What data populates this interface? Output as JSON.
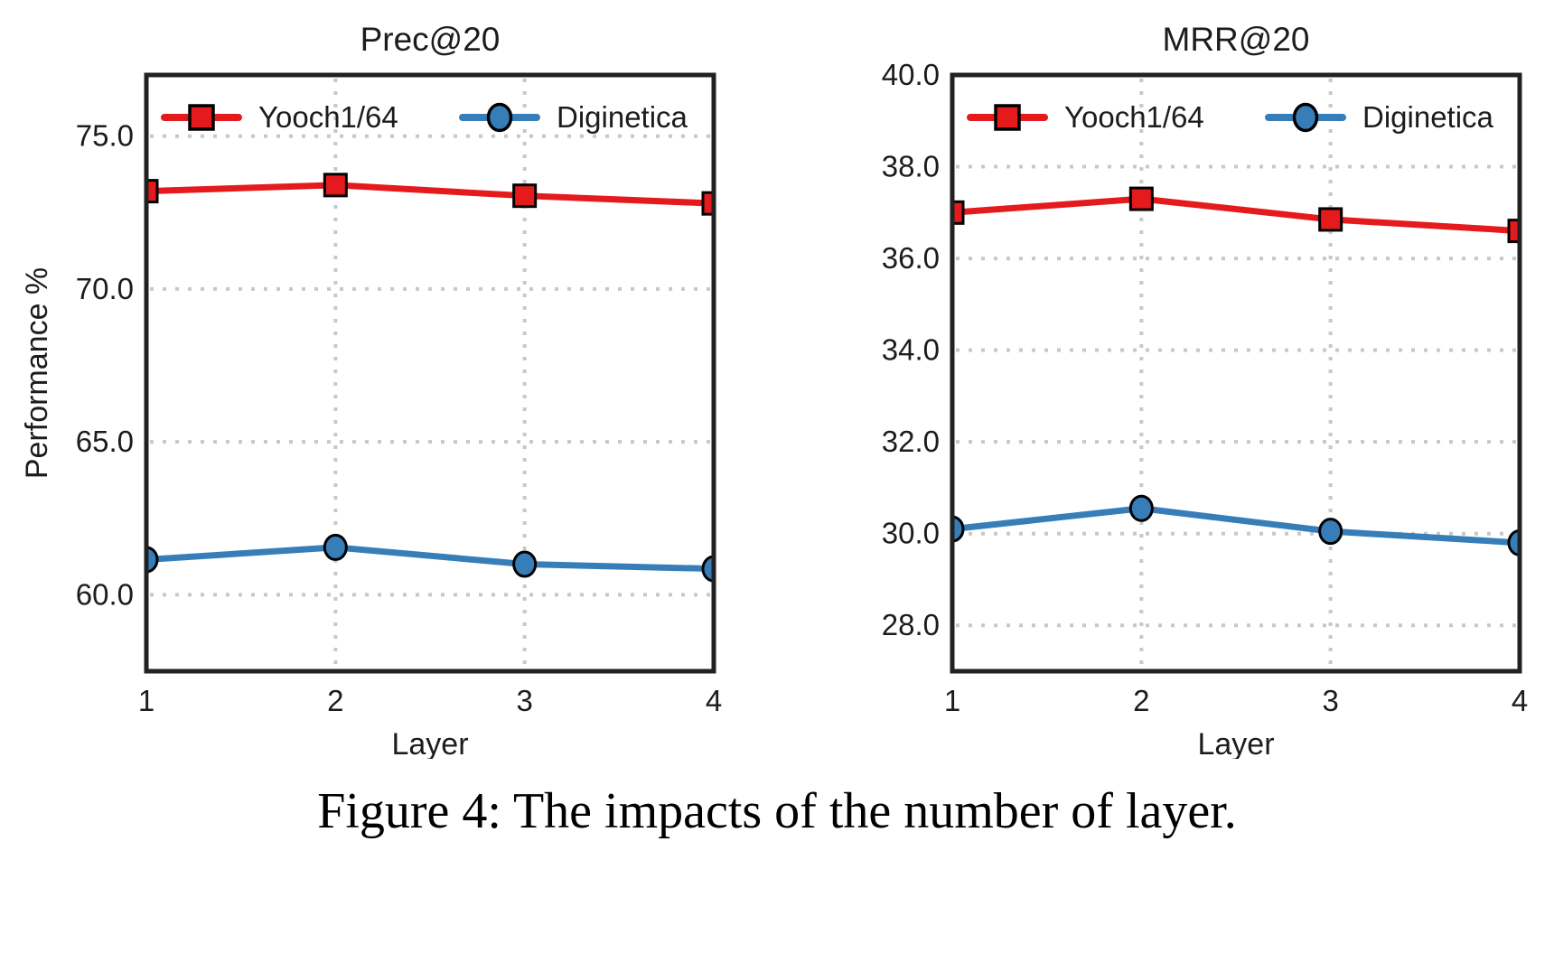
{
  "figure": {
    "caption": "Figure 4: The impacts of the number of layer."
  },
  "colors": {
    "series_red": "#e41a1c",
    "series_blue": "#377eb8",
    "frame": "#212121",
    "grid": "#c8c8c8",
    "text": "#1c1c1c",
    "marker_edge": "#000000",
    "background": "#ffffff"
  },
  "chart_data": [
    {
      "type": "line",
      "title": "Prec@20",
      "xlabel": "Layer",
      "ylabel": "Performance %",
      "x": [
        1,
        2,
        3,
        4
      ],
      "xtick_labels": [
        "1",
        "2",
        "3",
        "4"
      ],
      "xlim": [
        1,
        4
      ],
      "ylim": [
        57.5,
        77.0
      ],
      "yticks": [
        75.0,
        70.0,
        65.0,
        60.0
      ],
      "ytick_labels": [
        "75.0",
        "70.0",
        "65.0",
        "60.0"
      ],
      "grid": "dotted",
      "legend_position": "top-inside-horizontal",
      "series": [
        {
          "name": "Yooch1/64",
          "color": "#e41a1c",
          "marker": "square",
          "values": [
            73.2,
            73.4,
            73.05,
            72.8
          ]
        },
        {
          "name": "Diginetica",
          "color": "#377eb8",
          "marker": "circle",
          "values": [
            61.15,
            61.55,
            61.0,
            60.85
          ]
        }
      ]
    },
    {
      "type": "line",
      "title": "MRR@20",
      "xlabel": "Layer",
      "ylabel": "",
      "x": [
        1,
        2,
        3,
        4
      ],
      "xtick_labels": [
        "1",
        "2",
        "3",
        "4"
      ],
      "xlim": [
        1,
        4
      ],
      "ylim": [
        27.0,
        40.0
      ],
      "yticks": [
        40.0,
        38.0,
        36.0,
        34.0,
        32.0,
        30.0,
        28.0
      ],
      "ytick_labels": [
        "40.0",
        "38.0",
        "36.0",
        "34.0",
        "32.0",
        "30.0",
        "28.0"
      ],
      "grid": "dotted",
      "legend_position": "top-inside-horizontal",
      "series": [
        {
          "name": "Yooch1/64",
          "color": "#e41a1c",
          "marker": "square",
          "values": [
            37.0,
            37.3,
            36.85,
            36.6
          ]
        },
        {
          "name": "Diginetica",
          "color": "#377eb8",
          "marker": "circle",
          "values": [
            30.1,
            30.55,
            30.05,
            29.8
          ]
        }
      ]
    }
  ]
}
